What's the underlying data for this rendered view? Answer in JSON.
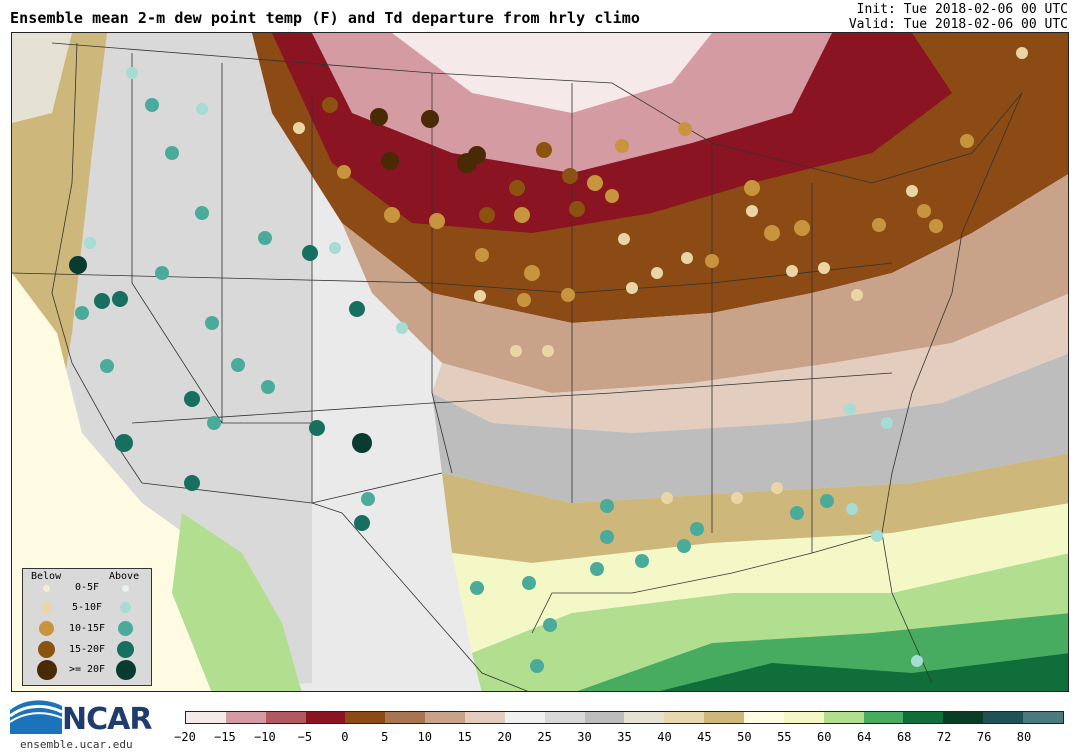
{
  "title": "Ensemble mean 2-m dew point temp (F) and Td departure from hrly climo",
  "init_label": "Init: Tue 2018-02-06 00 UTC",
  "valid_label": "Valid: Tue 2018-02-06 00 UTC",
  "legend": {
    "below_label": "Below",
    "above_label": "Above",
    "rows": [
      {
        "label": "0-5F",
        "below_color": "#f5ecd6",
        "above_color": "#e6f4f0"
      },
      {
        "label": "5-10F",
        "below_color": "#ead6a4",
        "above_color": "#a5dcd4"
      },
      {
        "label": "10-15F",
        "below_color": "#c8953e",
        "above_color": "#4bab9b"
      },
      {
        "label": "15-20F",
        "below_color": "#8c5310",
        "above_color": "#17705f"
      },
      {
        "label": ">= 20F",
        "below_color": "#4a2905",
        "above_color": "#093b30"
      }
    ]
  },
  "colorbar": {
    "colors": [
      "#f6e9ea",
      "#d49ca2",
      "#b05960",
      "#8a1422",
      "#8c4a14",
      "#a87552",
      "#c9a28a",
      "#e3cdbf",
      "#f0f0f0",
      "#d9d9d9",
      "#bdbdbd",
      "#e6e2d3",
      "#e8d8b2",
      "#cdb77a",
      "#fffbe3",
      "#f4f8c6",
      "#b2df8f",
      "#47ac5f",
      "#0f6e3a",
      "#093d26",
      "#1e5256",
      "#4a7a80"
    ],
    "tick_labels": [
      "−20",
      "−15",
      "−10",
      "−5",
      "0",
      "5",
      "10",
      "15",
      "20",
      "25",
      "30",
      "35",
      "40",
      "45",
      "50",
      "55",
      "60",
      "64",
      "68",
      "72",
      "76",
      "80"
    ]
  },
  "branding": {
    "logo_text": "NCAR",
    "url": "ensemble.ucar.edu"
  }
}
